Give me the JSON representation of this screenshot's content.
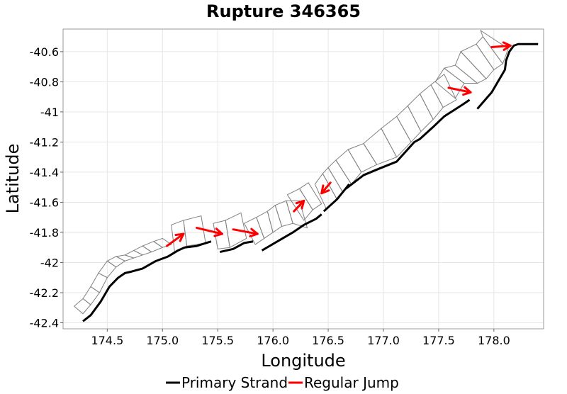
{
  "chart_data": {
    "type": "line",
    "title": "Rupture 346365",
    "xlabel": "Longitude",
    "ylabel": "Latitude",
    "xlim": [
      174.1,
      178.45
    ],
    "ylim": [
      -42.44,
      -40.45
    ],
    "xticks": [
      "174.5",
      "175.0",
      "175.5",
      "176.0",
      "176.5",
      "177.0",
      "177.5",
      "178.0"
    ],
    "xtick_values": [
      174.5,
      175.0,
      175.5,
      176.0,
      176.5,
      177.0,
      177.5,
      178.0
    ],
    "yticks": [
      "-40.6",
      "-40.8",
      "-41",
      "-41.2",
      "-41.4",
      "-41.6",
      "-41.8",
      "-42",
      "-42.2",
      "-42.4"
    ],
    "ytick_values": [
      -40.6,
      -40.8,
      -41.0,
      -41.2,
      -41.4,
      -41.6,
      -41.8,
      -42.0,
      -42.2,
      -42.4
    ],
    "grid": true,
    "legend_position": "bottom-center",
    "colors": {
      "primary": "#000000",
      "jump": "#ff0000",
      "fault": "#808080",
      "grid": "#e6e6e6",
      "frame": "#999999"
    },
    "legend": [
      {
        "label": "Primary Strand",
        "color": "#000000"
      },
      {
        "label": "Regular Jump",
        "color": "#ff0000"
      }
    ],
    "primary_strand_segments": [
      [
        [
          174.28,
          -42.39
        ],
        [
          174.35,
          -42.35
        ],
        [
          174.44,
          -42.26
        ],
        [
          174.52,
          -42.16
        ],
        [
          174.6,
          -42.1
        ],
        [
          174.66,
          -42.07
        ],
        [
          174.72,
          -42.06
        ],
        [
          174.82,
          -42.04
        ],
        [
          174.94,
          -41.99
        ],
        [
          175.05,
          -41.96
        ],
        [
          175.14,
          -41.92
        ],
        [
          175.2,
          -41.9
        ],
        [
          175.31,
          -41.89
        ],
        [
          175.44,
          -41.86
        ]
      ],
      [
        [
          175.52,
          -41.93
        ],
        [
          175.64,
          -41.91
        ],
        [
          175.74,
          -41.87
        ],
        [
          175.82,
          -41.86
        ]
      ],
      [
        [
          175.9,
          -41.92
        ],
        [
          176.04,
          -41.86
        ],
        [
          176.18,
          -41.8
        ],
        [
          176.28,
          -41.75
        ],
        [
          176.39,
          -41.71
        ],
        [
          176.44,
          -41.68
        ]
      ],
      [
        [
          176.46,
          -41.66
        ],
        [
          176.58,
          -41.58
        ],
        [
          176.69,
          -41.48
        ]
      ],
      [
        [
          176.66,
          -41.51
        ],
        [
          176.82,
          -41.42
        ],
        [
          176.95,
          -41.38
        ],
        [
          177.12,
          -41.33
        ],
        [
          177.28,
          -41.2
        ],
        [
          177.33,
          -41.18
        ],
        [
          177.45,
          -41.1
        ],
        [
          177.55,
          -41.03
        ],
        [
          177.72,
          -40.95
        ],
        [
          177.78,
          -40.92
        ]
      ],
      [
        [
          177.85,
          -40.98
        ],
        [
          177.98,
          -40.87
        ],
        [
          178.06,
          -40.77
        ],
        [
          178.1,
          -40.72
        ],
        [
          178.11,
          -40.66
        ],
        [
          178.14,
          -40.6
        ],
        [
          178.18,
          -40.56
        ],
        [
          178.22,
          -40.55
        ],
        [
          178.31,
          -40.55
        ],
        [
          178.4,
          -40.55
        ]
      ]
    ],
    "regular_jumps": [
      [
        [
          175.04,
          -41.89
        ],
        [
          175.19,
          -41.81
        ]
      ],
      [
        [
          175.31,
          -41.77
        ],
        [
          175.54,
          -41.81
        ]
      ],
      [
        [
          175.64,
          -41.78
        ],
        [
          175.86,
          -41.81
        ]
      ],
      [
        [
          176.19,
          -41.66
        ],
        [
          176.28,
          -41.59
        ]
      ],
      [
        [
          176.52,
          -41.47
        ],
        [
          176.44,
          -41.54
        ]
      ],
      [
        [
          177.59,
          -40.84
        ],
        [
          177.79,
          -40.87
        ]
      ],
      [
        [
          177.98,
          -40.57
        ],
        [
          178.15,
          -40.56
        ]
      ]
    ],
    "fault_panels": [
      [
        [
          174.2,
          -42.29
        ],
        [
          174.28,
          -42.34
        ],
        [
          174.35,
          -42.28
        ],
        [
          174.28,
          -42.24
        ]
      ],
      [
        [
          174.28,
          -42.24
        ],
        [
          174.35,
          -42.28
        ],
        [
          174.43,
          -42.2
        ],
        [
          174.35,
          -42.16
        ]
      ],
      [
        [
          174.35,
          -42.16
        ],
        [
          174.43,
          -42.2
        ],
        [
          174.5,
          -42.1
        ],
        [
          174.42,
          -42.07
        ]
      ],
      [
        [
          174.42,
          -42.07
        ],
        [
          174.5,
          -42.1
        ],
        [
          174.58,
          -42.03
        ],
        [
          174.5,
          -41.99
        ]
      ],
      [
        [
          174.5,
          -41.99
        ],
        [
          174.58,
          -42.03
        ],
        [
          174.66,
          -41.99
        ],
        [
          174.58,
          -41.96
        ]
      ],
      [
        [
          174.58,
          -41.96
        ],
        [
          174.66,
          -41.99
        ],
        [
          174.74,
          -41.97
        ],
        [
          174.66,
          -41.95
        ]
      ],
      [
        [
          174.66,
          -41.95
        ],
        [
          174.74,
          -41.97
        ],
        [
          174.82,
          -41.95
        ],
        [
          174.74,
          -41.92
        ]
      ],
      [
        [
          174.74,
          -41.92
        ],
        [
          174.82,
          -41.95
        ],
        [
          174.9,
          -41.93
        ],
        [
          174.82,
          -41.89
        ]
      ],
      [
        [
          174.82,
          -41.89
        ],
        [
          174.9,
          -41.93
        ],
        [
          175.0,
          -41.9
        ],
        [
          174.92,
          -41.86
        ]
      ],
      [
        [
          174.92,
          -41.86
        ],
        [
          175.0,
          -41.9
        ],
        [
          175.08,
          -41.88
        ],
        [
          175.0,
          -41.84
        ]
      ],
      [
        [
          175.08,
          -41.75
        ],
        [
          175.11,
          -41.93
        ],
        [
          175.22,
          -41.89
        ],
        [
          175.19,
          -41.72
        ]
      ],
      [
        [
          175.19,
          -41.72
        ],
        [
          175.22,
          -41.89
        ],
        [
          175.39,
          -41.87
        ],
        [
          175.35,
          -41.69
        ]
      ],
      [
        [
          175.46,
          -41.74
        ],
        [
          175.5,
          -41.91
        ],
        [
          175.61,
          -41.9
        ],
        [
          175.57,
          -41.72
        ]
      ],
      [
        [
          175.57,
          -41.72
        ],
        [
          175.61,
          -41.9
        ],
        [
          175.76,
          -41.84
        ],
        [
          175.71,
          -41.67
        ]
      ],
      [
        [
          175.74,
          -41.74
        ],
        [
          175.84,
          -41.88
        ],
        [
          175.92,
          -41.84
        ],
        [
          175.85,
          -41.7
        ]
      ],
      [
        [
          175.85,
          -41.7
        ],
        [
          175.92,
          -41.84
        ],
        [
          176.0,
          -41.8
        ],
        [
          175.95,
          -41.66
        ]
      ],
      [
        [
          175.95,
          -41.66
        ],
        [
          176.0,
          -41.8
        ],
        [
          176.08,
          -41.76
        ],
        [
          176.02,
          -41.62
        ]
      ],
      [
        [
          176.02,
          -41.62
        ],
        [
          176.08,
          -41.76
        ],
        [
          176.18,
          -41.74
        ],
        [
          176.12,
          -41.59
        ]
      ],
      [
        [
          176.12,
          -41.59
        ],
        [
          176.18,
          -41.74
        ],
        [
          176.31,
          -41.77
        ],
        [
          176.24,
          -41.59
        ]
      ],
      [
        [
          176.13,
          -41.55
        ],
        [
          176.28,
          -41.72
        ],
        [
          176.36,
          -41.65
        ],
        [
          176.24,
          -41.51
        ]
      ],
      [
        [
          176.24,
          -41.51
        ],
        [
          176.36,
          -41.65
        ],
        [
          176.44,
          -41.61
        ],
        [
          176.32,
          -41.47
        ]
      ],
      [
        [
          176.38,
          -41.48
        ],
        [
          176.48,
          -41.64
        ],
        [
          176.58,
          -41.58
        ],
        [
          176.45,
          -41.41
        ]
      ],
      [
        [
          176.45,
          -41.41
        ],
        [
          176.58,
          -41.58
        ],
        [
          176.63,
          -41.53
        ],
        [
          176.5,
          -41.37
        ]
      ],
      [
        [
          176.5,
          -41.37
        ],
        [
          176.63,
          -41.53
        ],
        [
          176.71,
          -41.48
        ],
        [
          176.57,
          -41.32
        ]
      ],
      [
        [
          176.57,
          -41.32
        ],
        [
          176.71,
          -41.48
        ],
        [
          176.8,
          -41.4
        ],
        [
          176.68,
          -41.25
        ]
      ],
      [
        [
          176.68,
          -41.25
        ],
        [
          176.8,
          -41.4
        ],
        [
          176.94,
          -41.35
        ],
        [
          176.82,
          -41.21
        ]
      ],
      [
        [
          176.82,
          -41.21
        ],
        [
          176.94,
          -41.35
        ],
        [
          177.12,
          -41.3
        ],
        [
          176.98,
          -41.11
        ]
      ],
      [
        [
          176.98,
          -41.11
        ],
        [
          177.12,
          -41.3
        ],
        [
          177.25,
          -41.2
        ],
        [
          177.12,
          -41.03
        ]
      ],
      [
        [
          177.12,
          -41.03
        ],
        [
          177.25,
          -41.2
        ],
        [
          177.34,
          -41.13
        ],
        [
          177.22,
          -40.96
        ]
      ],
      [
        [
          177.22,
          -40.96
        ],
        [
          177.34,
          -41.13
        ],
        [
          177.45,
          -41.05
        ],
        [
          177.33,
          -40.88
        ]
      ],
      [
        [
          177.33,
          -40.88
        ],
        [
          177.45,
          -41.05
        ],
        [
          177.54,
          -40.97
        ],
        [
          177.43,
          -40.82
        ]
      ],
      [
        [
          177.43,
          -40.82
        ],
        [
          177.54,
          -40.97
        ],
        [
          177.66,
          -40.92
        ],
        [
          177.55,
          -40.75
        ]
      ],
      [
        [
          177.47,
          -40.8
        ],
        [
          177.65,
          -40.91
        ],
        [
          177.73,
          -40.81
        ],
        [
          177.55,
          -40.71
        ]
      ],
      [
        [
          177.55,
          -40.71
        ],
        [
          177.73,
          -40.81
        ],
        [
          177.85,
          -40.81
        ],
        [
          177.65,
          -40.69
        ]
      ],
      [
        [
          177.65,
          -40.69
        ],
        [
          177.85,
          -40.81
        ],
        [
          177.93,
          -40.78
        ],
        [
          177.7,
          -40.6
        ]
      ],
      [
        [
          177.7,
          -40.6
        ],
        [
          177.93,
          -40.78
        ],
        [
          178.0,
          -40.72
        ],
        [
          177.84,
          -40.55
        ]
      ],
      [
        [
          177.84,
          -40.55
        ],
        [
          178.0,
          -40.72
        ],
        [
          178.08,
          -40.68
        ],
        [
          177.9,
          -40.5
        ]
      ],
      [
        [
          177.9,
          -40.5
        ],
        [
          178.08,
          -40.68
        ],
        [
          178.13,
          -40.58
        ],
        [
          177.88,
          -40.46
        ]
      ]
    ]
  }
}
